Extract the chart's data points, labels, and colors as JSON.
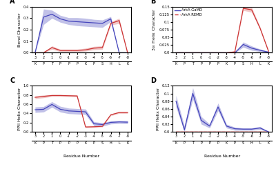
{
  "x_labels": [
    "3",
    "2",
    "1",
    "0",
    "-1",
    "-2",
    "-3",
    "-4",
    "-5",
    "-6",
    "-7",
    "-8"
  ],
  "x_aa": [
    "K",
    "P",
    "T",
    "P",
    "P",
    "P",
    "K",
    "P",
    "S",
    "H",
    "L",
    "K"
  ],
  "x_vals": [
    0,
    1,
    2,
    3,
    4,
    5,
    6,
    7,
    8,
    9,
    10,
    11
  ],
  "A_gamd_mean": [
    0.0,
    0.31,
    0.335,
    0.295,
    0.275,
    0.27,
    0.265,
    0.26,
    0.255,
    0.295,
    0.0,
    0.0
  ],
  "A_gamd_upper": [
    0.0,
    0.38,
    0.37,
    0.325,
    0.305,
    0.305,
    0.3,
    0.29,
    0.285,
    0.315,
    0.0,
    0.0
  ],
  "A_gamd_lower": [
    0.0,
    0.245,
    0.3,
    0.265,
    0.245,
    0.235,
    0.23,
    0.225,
    0.22,
    0.27,
    0.0,
    0.0
  ],
  "A_remd_mean": [
    0.0,
    0.0,
    0.045,
    0.02,
    0.02,
    0.02,
    0.025,
    0.04,
    0.045,
    0.255,
    0.28,
    0.0
  ],
  "A_remd_upper": [
    0.0,
    0.0,
    0.06,
    0.03,
    0.03,
    0.03,
    0.04,
    0.055,
    0.06,
    0.27,
    0.3,
    0.0
  ],
  "A_remd_lower": [
    0.0,
    0.0,
    0.03,
    0.01,
    0.01,
    0.01,
    0.015,
    0.025,
    0.03,
    0.24,
    0.255,
    0.0
  ],
  "B_gamd_mean": [
    0.0,
    0.0,
    0.0,
    0.0,
    0.0,
    0.0,
    0.0,
    0.0,
    0.027,
    0.015,
    0.008,
    0.002
  ],
  "B_gamd_upper": [
    0.0,
    0.0,
    0.0,
    0.0,
    0.0,
    0.0,
    0.0,
    0.0,
    0.035,
    0.022,
    0.012,
    0.004
  ],
  "B_gamd_lower": [
    0.0,
    0.0,
    0.0,
    0.0,
    0.0,
    0.0,
    0.0,
    0.0,
    0.018,
    0.008,
    0.004,
    0.0
  ],
  "B_remd_mean": [
    0.0,
    0.0,
    0.0,
    0.0,
    0.0,
    0.0,
    0.0,
    0.003,
    0.145,
    0.14,
    0.08,
    0.005
  ],
  "B_remd_upper": [
    0.0,
    0.0,
    0.0,
    0.0,
    0.0,
    0.0,
    0.0,
    0.004,
    0.152,
    0.148,
    0.085,
    0.008
  ],
  "B_remd_lower": [
    0.0,
    0.0,
    0.0,
    0.0,
    0.0,
    0.0,
    0.0,
    0.002,
    0.138,
    0.132,
    0.075,
    0.002
  ],
  "C_gamd_mean": [
    0.48,
    0.49,
    0.595,
    0.49,
    0.455,
    0.445,
    0.435,
    0.175,
    0.16,
    0.205,
    0.215,
    0.21
  ],
  "C_gamd_upper": [
    0.54,
    0.55,
    0.655,
    0.555,
    0.515,
    0.505,
    0.495,
    0.22,
    0.195,
    0.24,
    0.245,
    0.245
  ],
  "C_gamd_lower": [
    0.42,
    0.43,
    0.535,
    0.43,
    0.395,
    0.385,
    0.375,
    0.13,
    0.12,
    0.17,
    0.18,
    0.175
  ],
  "C_remd_mean": [
    0.75,
    0.77,
    0.79,
    0.79,
    0.785,
    0.78,
    0.105,
    0.11,
    0.12,
    0.37,
    0.42,
    0.42
  ],
  "C_remd_upper": [
    0.78,
    0.8,
    0.81,
    0.81,
    0.805,
    0.8,
    0.12,
    0.125,
    0.135,
    0.39,
    0.44,
    0.44
  ],
  "C_remd_lower": [
    0.72,
    0.74,
    0.77,
    0.77,
    0.765,
    0.76,
    0.09,
    0.095,
    0.105,
    0.35,
    0.4,
    0.4
  ],
  "D_gamd_mean": [
    0.08,
    0.005,
    0.1,
    0.03,
    0.015,
    0.065,
    0.015,
    0.008,
    0.007,
    0.007,
    0.01,
    0.0
  ],
  "D_gamd_upper": [
    0.095,
    0.015,
    0.115,
    0.04,
    0.02,
    0.075,
    0.02,
    0.012,
    0.01,
    0.01,
    0.014,
    0.0
  ],
  "D_gamd_lower": [
    0.065,
    0.0,
    0.085,
    0.02,
    0.01,
    0.055,
    0.01,
    0.004,
    0.004,
    0.004,
    0.006,
    0.0
  ],
  "D_remd_mean": [
    0.0,
    0.0,
    0.0,
    0.0,
    0.0,
    0.0,
    0.0,
    0.0,
    0.0,
    0.0,
    0.0,
    0.0
  ],
  "D_remd_upper": [
    0.002,
    0.002,
    0.002,
    0.002,
    0.002,
    0.002,
    0.002,
    0.002,
    0.002,
    0.002,
    0.002,
    0.002
  ],
  "D_remd_lower": [
    0.0,
    0.0,
    0.0,
    0.0,
    0.0,
    0.0,
    0.0,
    0.0,
    0.0,
    0.0,
    0.0,
    0.0
  ],
  "color_gamd": "#4444bb",
  "color_remd": "#cc3333",
  "fill_gamd_color": "#7777cc",
  "fill_remd_color": "#dd7777",
  "A_ylabel": "Bend Character",
  "B_ylabel": "$3_{10}$ Helix Character",
  "C_ylabel": "PPII Helix Character",
  "D_ylabel": "PPII Helix Character",
  "xlabel": "Residue Number",
  "A_ylim": [
    0.0,
    0.4
  ],
  "B_ylim": [
    0.0,
    0.15
  ],
  "C_ylim": [
    0.0,
    1.0
  ],
  "D_ylim": [
    0.0,
    0.12
  ],
  "A_yticks": [
    0.0,
    0.1,
    0.2,
    0.3,
    0.4
  ],
  "B_yticks": [
    0.0,
    0.025,
    0.05,
    0.075,
    0.1,
    0.125,
    0.15
  ],
  "C_yticks": [
    0.0,
    0.2,
    0.4,
    0.6,
    0.8,
    1.0
  ],
  "D_yticks": [
    0.0,
    0.02,
    0.04,
    0.06,
    0.08,
    0.1,
    0.12
  ],
  "legend_gamd": "ArkA GaMD",
  "legend_remd": "ArkA REMD"
}
